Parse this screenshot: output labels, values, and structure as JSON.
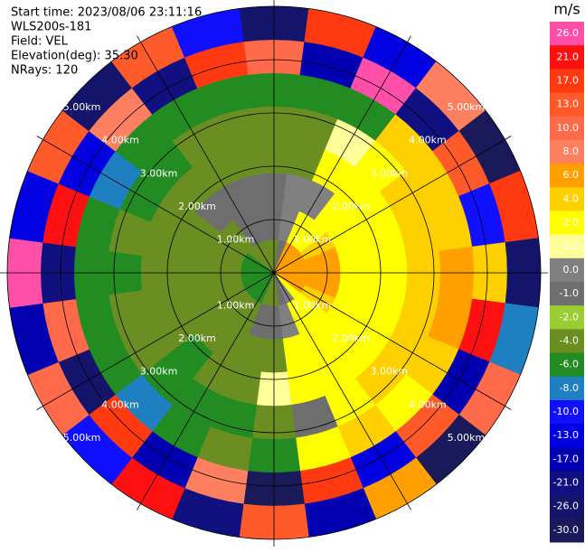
{
  "chart_data": {
    "type": "ppi",
    "header": [
      "Start time: 2023/08/06 23:11:16",
      "WLS200s-181",
      "Field: VEL",
      "Elevation(deg): 35.30",
      "NRays: 120"
    ],
    "rings": [
      {
        "value": 1,
        "label": "1.00km"
      },
      {
        "value": 2,
        "label": "2.00km"
      },
      {
        "value": 3,
        "label": "3.00km"
      },
      {
        "value": 4,
        "label": "4.00km"
      },
      {
        "value": 5,
        "label": "5.00km"
      }
    ],
    "rlim": [
      0,
      5
    ],
    "values": [
      [
        -3,
        -1,
        -0.5,
        -3,
        -3,
        -5,
        12,
        -24
      ],
      [
        -1,
        0.5,
        0.5,
        -3,
        -3,
        -5,
        -15,
        20
      ],
      [
        7,
        3,
        0.5,
        3,
        1.5,
        -5,
        28,
        -12
      ],
      [
        7,
        3,
        3,
        3,
        3,
        5,
        -19,
        9
      ],
      [
        7,
        5,
        3,
        3,
        5,
        5,
        14,
        -28
      ],
      [
        7,
        7,
        3,
        3,
        5,
        5,
        -9,
        18
      ],
      [
        7,
        7,
        3,
        3,
        5,
        7,
        5,
        -22
      ],
      [
        7,
        7,
        3,
        3,
        5,
        7,
        23,
        -7
      ],
      [
        7,
        5,
        3,
        3,
        5,
        5,
        -15,
        11
      ],
      [
        3,
        3,
        3,
        3,
        5,
        3,
        16,
        -27
      ],
      [
        0.5,
        3,
        3,
        3,
        3,
        5,
        -11,
        7
      ],
      [
        -0.5,
        0.5,
        3,
        3,
        -0.5,
        3,
        19,
        -16
      ],
      [
        -3,
        -0.5,
        -3,
        1.5,
        -3,
        -5,
        -28,
        15
      ],
      [
        -3,
        -0.5,
        -3,
        -3,
        -5,
        -3,
        9,
        -20
      ],
      [
        -5,
        -3,
        -3,
        -3,
        -5,
        -5,
        -14,
        24
      ],
      [
        -5,
        -3,
        -3,
        -5,
        -5,
        -7,
        18,
        -9
      ],
      [
        -5,
        -3,
        -3,
        -3,
        -3,
        -5,
        -24,
        12
      ],
      [
        -5,
        -3,
        -3,
        -3,
        -3,
        -5,
        11,
        -15
      ],
      [
        -5,
        -3,
        -3,
        -3,
        -5,
        -5,
        -18,
        27
      ],
      [
        -5,
        -3,
        -3,
        -3,
        -3,
        -5,
        22,
        -11
      ],
      [
        -5,
        -3,
        -3,
        -3,
        -5,
        -7,
        -12,
        16
      ],
      [
        -3,
        -3,
        -0.5,
        -3,
        -5,
        -5,
        8,
        -26
      ],
      [
        -3,
        -0.5,
        -0.5,
        -3,
        -3,
        -5,
        -20,
        13
      ],
      [
        -3,
        -0.5,
        -0.5,
        -3,
        -3,
        -5,
        19,
        -10
      ]
    ],
    "colorbar": {
      "unit": "m/s",
      "ticks": [
        {
          "value": 26,
          "label": "26.0"
        },
        {
          "value": 21,
          "label": "21.0"
        },
        {
          "value": 17,
          "label": "17.0"
        },
        {
          "value": 13,
          "label": "13.0"
        },
        {
          "value": 10,
          "label": "10.0"
        },
        {
          "value": 8,
          "label": "8.0"
        },
        {
          "value": 6,
          "label": "6.0"
        },
        {
          "value": 4,
          "label": "4.0"
        },
        {
          "value": 2,
          "label": "2.0"
        },
        {
          "value": 1,
          "label": "1.0"
        },
        {
          "value": 0,
          "label": "0.0"
        },
        {
          "value": -1,
          "label": "-1.0"
        },
        {
          "value": -2,
          "label": "-2.0"
        },
        {
          "value": -4,
          "label": "-4.0"
        },
        {
          "value": -6,
          "label": "-6.0"
        },
        {
          "value": -8,
          "label": "-8.0"
        },
        {
          "value": -10,
          "label": "-10.0"
        },
        {
          "value": -13,
          "label": "-13.0"
        },
        {
          "value": -17,
          "label": "-17.0"
        },
        {
          "value": -21,
          "label": "-21.0"
        },
        {
          "value": -26,
          "label": "-26.0"
        },
        {
          "value": -30,
          "label": "-30.0"
        }
      ],
      "colors": [
        "#ff4fa8",
        "#ff1010",
        "#ff3a10",
        "#ff5a2a",
        "#ff6a4a",
        "#ff8060",
        "#ffa000",
        "#ffd000",
        "#ffff00",
        "#ffff99",
        "#808080",
        "#6e6e6e",
        "#9acd32",
        "#6b8e23",
        "#228b22",
        "#1e80c0",
        "#1010ff",
        "#0000e0",
        "#0000b0",
        "#101080",
        "#14146a",
        "#1a1a5a"
      ]
    }
  }
}
